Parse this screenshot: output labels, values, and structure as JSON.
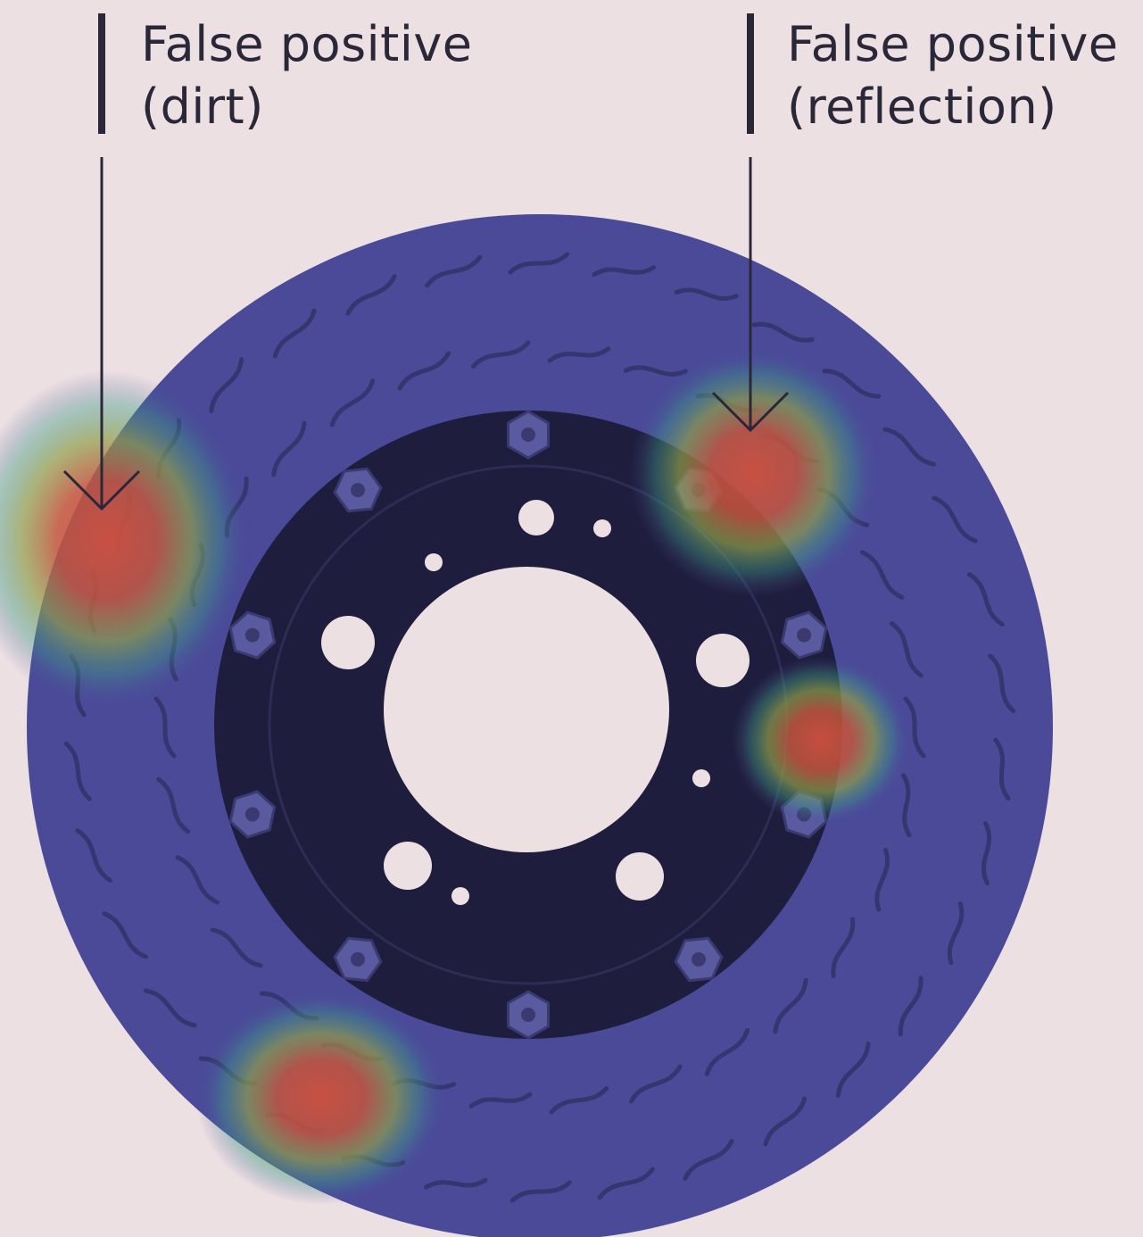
{
  "annotations": [
    {
      "lines": [
        "False positive",
        "(dirt)"
      ]
    },
    {
      "lines": [
        "False positive",
        "(reflection)"
      ]
    }
  ]
}
